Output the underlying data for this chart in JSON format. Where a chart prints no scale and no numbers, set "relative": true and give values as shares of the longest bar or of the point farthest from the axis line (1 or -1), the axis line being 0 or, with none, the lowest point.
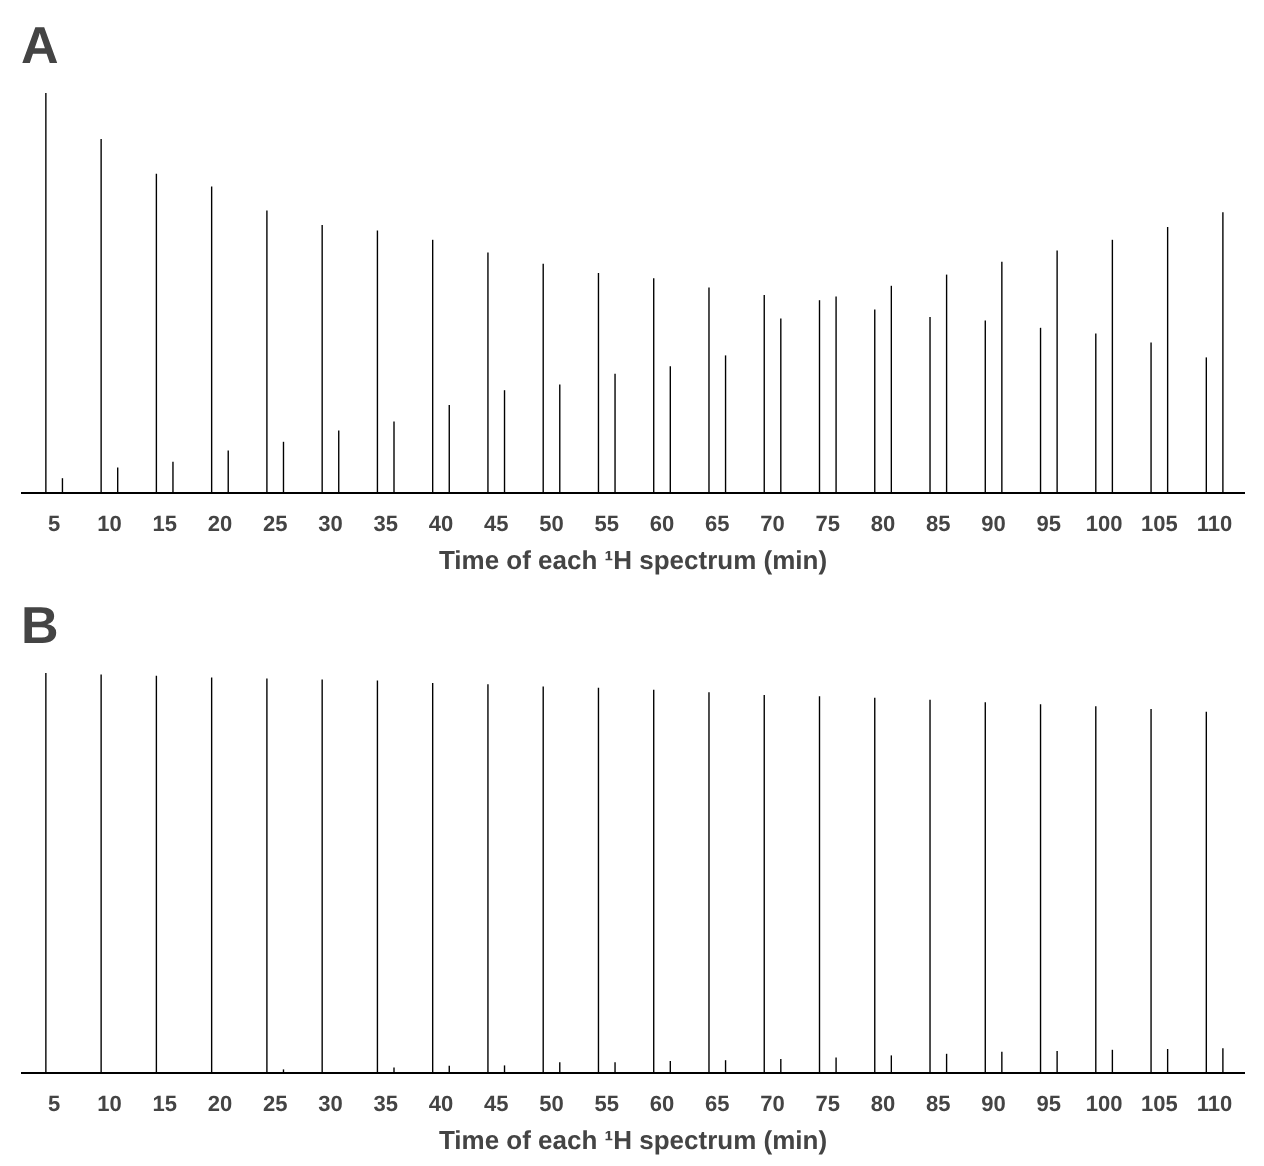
{
  "chart_data": [
    {
      "type": "bar",
      "title": "A",
      "xlabel": "Time of each ¹H spectrum (min)",
      "relative": true,
      "categories": [
        "5",
        "10",
        "15",
        "20",
        "25",
        "30",
        "35",
        "40",
        "45",
        "50",
        "55",
        "60",
        "65",
        "70",
        "75",
        "80",
        "85",
        "90",
        "95",
        "100",
        "105",
        "110"
      ],
      "series": [
        {
          "color": "#000000",
          "values": [
            1,
            0.885,
            0.798,
            0.766,
            0.706,
            0.67,
            0.656,
            0.633,
            0.601,
            0.573,
            0.55,
            0.537,
            0.514,
            0.495,
            0.482,
            0.459,
            0.44,
            0.431,
            0.413,
            0.399,
            0.376,
            0.339
          ]
        },
        {
          "color": "#000000",
          "values": [
            0.037,
            0.064,
            0.078,
            0.106,
            0.128,
            0.156,
            0.179,
            0.22,
            0.257,
            0.271,
            0.298,
            0.317,
            0.344,
            0.436,
            0.491,
            0.518,
            0.546,
            0.578,
            0.606,
            0.633,
            0.665,
            0.702
          ]
        }
      ]
    },
    {
      "type": "bar",
      "title": "B",
      "xlabel": "Time of each ¹H spectrum (min)",
      "relative": true,
      "categories": [
        "5",
        "10",
        "15",
        "20",
        "25",
        "30",
        "35",
        "40",
        "45",
        "50",
        "55",
        "60",
        "65",
        "70",
        "75",
        "80",
        "85",
        "90",
        "95",
        "100",
        "105",
        "110"
      ],
      "series": [
        {
          "color": "#000000",
          "values": [
            1,
            0.996,
            0.993,
            0.989,
            0.986,
            0.984,
            0.981,
            0.975,
            0.972,
            0.966,
            0.963,
            0.958,
            0.952,
            0.945,
            0.942,
            0.938,
            0.933,
            0.927,
            0.922,
            0.917,
            0.91,
            0.903
          ]
        },
        {
          "color": "#000000",
          "values": [
            null,
            null,
            null,
            null,
            0.009,
            null,
            0.014,
            0.018,
            0.019,
            0.027,
            0.027,
            0.03,
            0.032,
            0.035,
            0.039,
            0.044,
            0.048,
            0.053,
            0.055,
            0.058,
            0.06,
            0.062
          ]
        }
      ]
    }
  ]
}
